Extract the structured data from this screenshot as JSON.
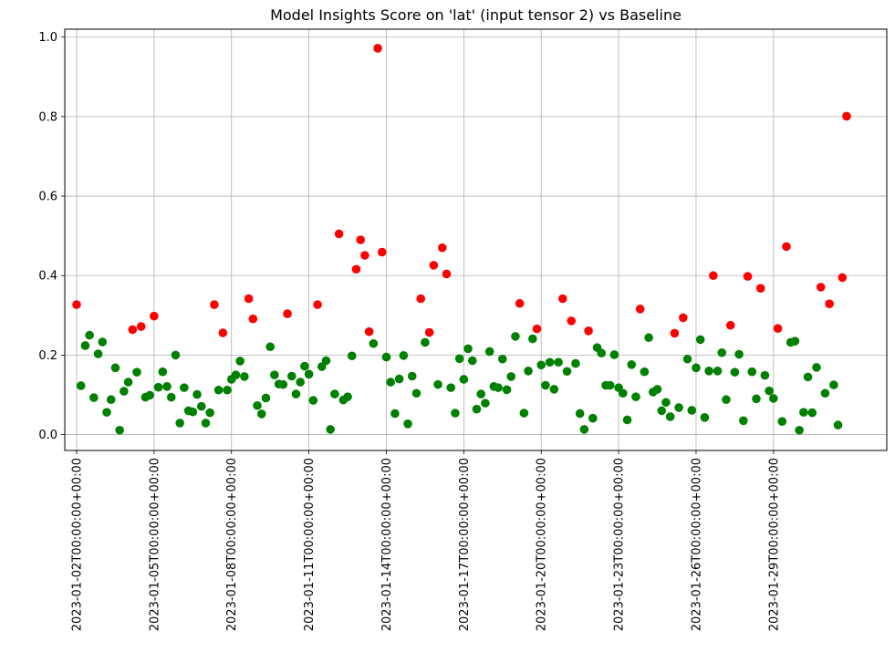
{
  "chart_data": {
    "type": "scatter",
    "title": "Model Insights Score on 'lat' (input tensor 2) vs Baseline",
    "xlabel": "",
    "ylabel": "",
    "grid": true,
    "ylim": [
      -0.04,
      1.02
    ],
    "yticks": [
      0.0,
      0.2,
      0.4,
      0.6,
      0.8,
      1.0
    ],
    "ytick_labels": [
      "0.0",
      "0.2",
      "0.4",
      "0.6",
      "0.8",
      "1.0"
    ],
    "xticks": [
      "2023-01-02",
      "2023-01-05",
      "2023-01-08",
      "2023-01-11",
      "2023-01-14",
      "2023-01-17",
      "2023-01-20",
      "2023-01-23",
      "2023-01-26",
      "2023-01-29"
    ],
    "xtick_labels": [
      "2023-01-02T00:00:00+00:00",
      "2023-01-05T00:00:00+00:00",
      "2023-01-08T00:00:00+00:00",
      "2023-01-11T00:00:00+00:00",
      "2023-01-14T00:00:00+00:00",
      "2023-01-17T00:00:00+00:00",
      "2023-01-20T00:00:00+00:00",
      "2023-01-23T00:00:00+00:00",
      "2023-01-26T00:00:00+00:00",
      "2023-01-29T00:00:00+00:00"
    ],
    "x_start": "2023-01-02T00:00:00+00:00",
    "x_end": "2023-02-01T00:00:00+00:00",
    "x_step_hours": 4,
    "colors": {
      "above": "#ff0000",
      "below": "#008000"
    },
    "series": [
      {
        "values": [
          0.327,
          0.123,
          0.224,
          0.25,
          0.093,
          0.203,
          0.233,
          0.056,
          0.088,
          0.168,
          0.011,
          0.109,
          0.132,
          0.264,
          0.157,
          0.272,
          0.094,
          0.099,
          0.298,
          0.119,
          0.158,
          0.121,
          0.094,
          0.2,
          0.029,
          0.118,
          0.06,
          0.057,
          0.101,
          0.071,
          0.029,
          0.055,
          0.327,
          0.112,
          0.256,
          0.112,
          0.139,
          0.15,
          0.185,
          0.146,
          0.342,
          0.291,
          0.073,
          0.052,
          0.092,
          0.221,
          0.15,
          0.127,
          0.126,
          0.304,
          0.147,
          0.102,
          0.132,
          0.172,
          0.152,
          0.086,
          0.327,
          0.171,
          0.186,
          0.013,
          0.102,
          0.505,
          0.087,
          0.095,
          0.198,
          0.416,
          0.49,
          0.451,
          0.259,
          0.229,
          0.972,
          0.459,
          0.195,
          0.132,
          0.053,
          0.14,
          0.199,
          0.027,
          0.147,
          0.104,
          0.342,
          0.232,
          0.257,
          0.426,
          0.126,
          0.47,
          0.404,
          0.118,
          0.054,
          0.191,
          0.139,
          0.216,
          0.186,
          0.064,
          0.102,
          0.079,
          0.209,
          0.121,
          0.118,
          0.19,
          0.113,
          0.146,
          0.247,
          0.33,
          0.054,
          0.16,
          0.241,
          0.266,
          0.175,
          0.124,
          0.182,
          0.114,
          0.182,
          0.342,
          0.159,
          0.286,
          0.179,
          0.053,
          0.013,
          0.261,
          0.041,
          0.219,
          0.205,
          0.124,
          0.124,
          0.201,
          0.118,
          0.104,
          0.037,
          0.176,
          0.095,
          0.316,
          0.158,
          0.244,
          0.107,
          0.114,
          0.06,
          0.081,
          0.045,
          0.255,
          0.068,
          0.294,
          0.19,
          0.061,
          0.168,
          0.239,
          0.043,
          0.16,
          0.4,
          0.16,
          0.206,
          0.088,
          0.275,
          0.157,
          0.202,
          0.035,
          0.398,
          0.158,
          0.09,
          0.368,
          0.149,
          0.11,
          0.091,
          0.267,
          0.033,
          0.473,
          0.232,
          0.235,
          0.011,
          0.056,
          0.145,
          0.055,
          0.169,
          0.371,
          0.104,
          0.329,
          0.125,
          0.024,
          0.395,
          0.801
        ]
      }
    ]
  }
}
